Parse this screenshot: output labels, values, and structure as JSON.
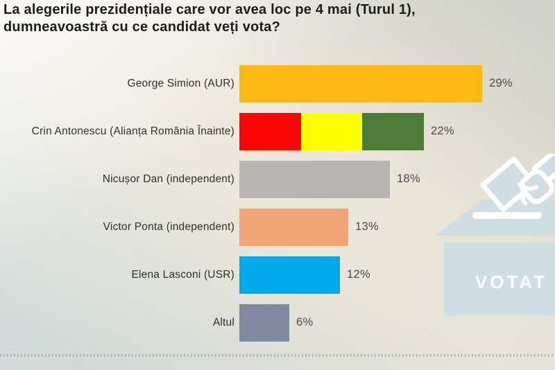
{
  "header": {
    "title_line1": "La alegerile prezidențiale care vor avea loc pe 4 mai (Turul 1),",
    "title_line2": "dumneavoastră cu ce candidat veți vota?",
    "title_full": "La alegerile prezidențiale care vor avea loc pe 4 mai (Turul 1), dumneavoastră cu ce candidat veți vota?"
  },
  "chart_data": {
    "type": "bar",
    "orientation": "horizontal",
    "grid": false,
    "legend": false,
    "xlim": [
      0,
      30
    ],
    "categories": [
      "George Simion (AUR)",
      "Crin Antonescu (Alianța România Înainte)",
      "Nicușor Dan (independent)",
      "Victor Ponta (independent)",
      "Elena Lasconi (USR)",
      "Altul"
    ],
    "values": [
      29,
      22,
      18,
      13,
      12,
      6
    ],
    "value_labels": [
      "29%",
      "22%",
      "18%",
      "13%",
      "12%",
      "6%"
    ],
    "rows": [
      {
        "label": "George Simion (AUR)",
        "value": 29,
        "display": "29%",
        "colors": [
          "#fcb813"
        ]
      },
      {
        "label": "Crin Antonescu (Alianța România Înainte)",
        "value": 22,
        "display": "22%",
        "colors": [
          "#fb0505",
          "#ffff00",
          "#4e7c38"
        ]
      },
      {
        "label": "Nicușor Dan (independent)",
        "value": 18,
        "display": "18%",
        "colors": [
          "#b7b5b3"
        ]
      },
      {
        "label": "Victor Ponta (independent)",
        "value": 13,
        "display": "13%",
        "colors": [
          "#f2a478"
        ]
      },
      {
        "label": "Elena Lasconi (USR)",
        "value": 12,
        "display": "12%",
        "colors": [
          "#00a9e9"
        ]
      },
      {
        "label": "Altul",
        "value": 6,
        "display": "6%",
        "colors": [
          "#7f8aa1"
        ]
      }
    ]
  },
  "illustration": {
    "votat_label": "VOTAT",
    "box_color": "#cfdee3",
    "stroke_color": "#ffffff"
  }
}
